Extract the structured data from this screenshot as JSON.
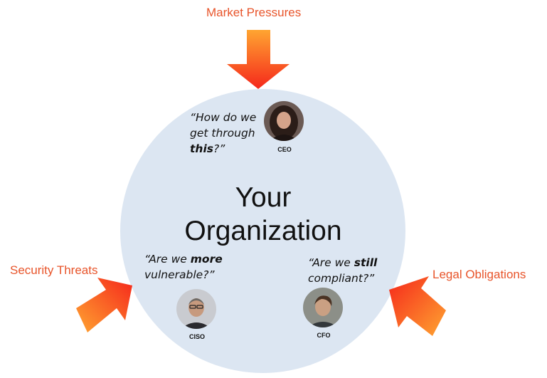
{
  "forces": {
    "top": "Market Pressures",
    "left": "Security Threats",
    "right": "Legal Obligations"
  },
  "organization": {
    "line1": "Your",
    "line2": "Organization"
  },
  "people": {
    "ceo": {
      "role": "CEO",
      "quote_line1": "“How do we",
      "quote_line2": "get through",
      "quote_bold": "this",
      "quote_end": "?”"
    },
    "ciso": {
      "role": "CISO",
      "quote_pre": "“Are we ",
      "quote_bold": "more",
      "quote_line2": "vulnerable?”"
    },
    "cfo": {
      "role": "CFO",
      "quote_pre": "“Are we ",
      "quote_bold": "still",
      "quote_line2": "compliant?”"
    }
  },
  "colors": {
    "label": "#e8542a",
    "arrow_light": "#ffa531",
    "arrow_dark": "#f5271b",
    "circle": "#dce6f2"
  }
}
